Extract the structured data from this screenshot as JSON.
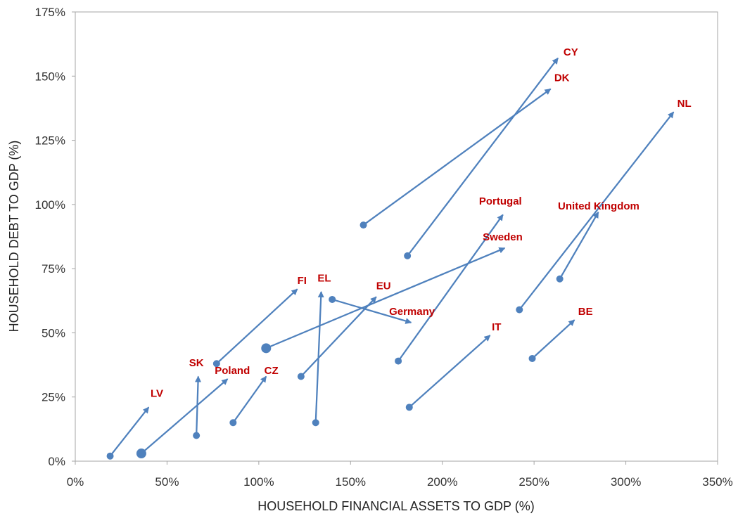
{
  "chart_data": {
    "type": "scatter",
    "subtype": "arrow-migration",
    "title": "",
    "xlabel": "HOUSEHOLD FINANCIAL ASSETS TO GDP (%)",
    "ylabel": "HOUSEHOLD  DEBT TO GDP (%)",
    "xlim": [
      0,
      350
    ],
    "ylim": [
      0,
      175
    ],
    "x_ticks": [
      0,
      50,
      100,
      150,
      200,
      250,
      300,
      350
    ],
    "y_ticks": [
      0,
      25,
      50,
      75,
      100,
      125,
      150,
      175
    ],
    "x_tick_labels": [
      "0%",
      "50%",
      "100%",
      "150%",
      "200%",
      "250%",
      "300%",
      "350%"
    ],
    "y_tick_labels": [
      "0%",
      "25%",
      "50%",
      "75%",
      "100%",
      "125%",
      "150%",
      "175%"
    ],
    "grid": false,
    "arrow_color": "#4f81bd",
    "label_color": "#c00000",
    "series": [
      {
        "name": "CY",
        "start": [
          181,
          80
        ],
        "end": [
          263,
          157
        ]
      },
      {
        "name": "DK",
        "start": [
          157,
          92
        ],
        "end": [
          259,
          145
        ]
      },
      {
        "name": "NL",
        "start": [
          242,
          59
        ],
        "end": [
          326,
          136
        ]
      },
      {
        "name": "Portugal",
        "start": [
          176,
          39
        ],
        "end": [
          233,
          96
        ]
      },
      {
        "name": "United Kingdom",
        "start": [
          264,
          71
        ],
        "end": [
          285,
          97
        ]
      },
      {
        "name": "Sweden",
        "start": [
          104,
          44
        ],
        "end": [
          234,
          83
        ],
        "large_marker": true
      },
      {
        "name": "FI",
        "start": [
          77,
          38
        ],
        "end": [
          121,
          67
        ]
      },
      {
        "name": "EL",
        "start": [
          131,
          15
        ],
        "end": [
          134,
          66
        ]
      },
      {
        "name": "EU",
        "start": [
          123,
          33
        ],
        "end": [
          164,
          64
        ]
      },
      {
        "name": "Germany",
        "start": [
          140,
          63
        ],
        "end": [
          183,
          54
        ]
      },
      {
        "name": "IT",
        "start": [
          182,
          21
        ],
        "end": [
          226,
          49
        ]
      },
      {
        "name": "BE",
        "start": [
          249,
          40
        ],
        "end": [
          272,
          55
        ]
      },
      {
        "name": "SK",
        "start": [
          66,
          10
        ],
        "end": [
          67,
          33
        ]
      },
      {
        "name": "Poland",
        "start": [
          36,
          3
        ],
        "end": [
          83,
          32
        ],
        "large_marker": true
      },
      {
        "name": "CZ",
        "start": [
          86,
          15
        ],
        "end": [
          104,
          33
        ]
      },
      {
        "name": "LV",
        "start": [
          19,
          2
        ],
        "end": [
          40,
          21
        ]
      }
    ],
    "labels": [
      {
        "series": "CY",
        "text": "CY",
        "x": 266,
        "y": 158
      },
      {
        "series": "DK",
        "text": "DK",
        "x": 261,
        "y": 148
      },
      {
        "series": "NL",
        "text": "NL",
        "x": 328,
        "y": 138
      },
      {
        "series": "Portugal",
        "text": "Portugal",
        "x": 220,
        "y": 100
      },
      {
        "series": "United Kingdom",
        "text": "United Kingdom",
        "x": 263,
        "y": 98
      },
      {
        "series": "Sweden",
        "text": "Sweden",
        "x": 222,
        "y": 86
      },
      {
        "series": "FI",
        "text": "FI",
        "x": 121,
        "y": 69
      },
      {
        "series": "EL",
        "text": "EL",
        "x": 132,
        "y": 70
      },
      {
        "series": "EU",
        "text": "EU",
        "x": 164,
        "y": 67
      },
      {
        "series": "Germany",
        "text": "Germany",
        "x": 171,
        "y": 57
      },
      {
        "series": "IT",
        "text": "IT",
        "x": 227,
        "y": 51
      },
      {
        "series": "BE",
        "text": "BE",
        "x": 274,
        "y": 57
      },
      {
        "series": "SK",
        "text": "SK",
        "x": 62,
        "y": 37
      },
      {
        "series": "Poland",
        "text": "Poland",
        "x": 76,
        "y": 34
      },
      {
        "series": "CZ",
        "text": "CZ",
        "x": 103,
        "y": 34
      },
      {
        "series": "LV",
        "text": "LV",
        "x": 41,
        "y": 25
      }
    ]
  }
}
